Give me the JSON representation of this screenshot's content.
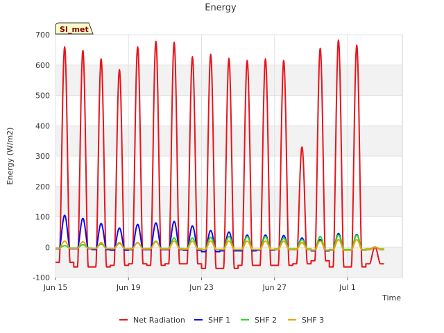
{
  "chart_data": {
    "type": "line",
    "title": "Energy",
    "xlabel": "Time",
    "ylabel": "Energy (W/m2)",
    "site_label": "SI_met",
    "ylim": [
      -100,
      700
    ],
    "yticks": [
      -100,
      0,
      100,
      200,
      300,
      400,
      500,
      600,
      700
    ],
    "xlim": [
      "2024-06-15",
      "2024-07-04"
    ],
    "xticks": [
      {
        "date": "2024-06-15",
        "label": "Jun 15"
      },
      {
        "date": "2024-06-19",
        "label": "Jun 19"
      },
      {
        "date": "2024-06-23",
        "label": "Jun 23"
      },
      {
        "date": "2024-06-27",
        "label": "Jun 27"
      },
      {
        "date": "2024-07-01",
        "label": "Jul 1"
      }
    ],
    "grid": true,
    "background_bands": true,
    "legend_position": "bottom",
    "series": [
      {
        "name": "Net Radiation",
        "color": "#e8141c",
        "daily_min": [
          -50,
          -65,
          -65,
          -60,
          -55,
          -60,
          -55,
          -55,
          -70,
          -70,
          -60,
          -60,
          -60,
          -55,
          -45,
          -65,
          -65,
          -55
        ],
        "daily_max": [
          660,
          648,
          620,
          585,
          660,
          678,
          675,
          627,
          635,
          622,
          615,
          620,
          615,
          330,
          655,
          682,
          665,
          0
        ]
      },
      {
        "name": "SHF 1",
        "color": "#0a0aef",
        "daily_min": [
          -5,
          -5,
          -8,
          -10,
          -8,
          -8,
          -8,
          -10,
          -15,
          -12,
          -12,
          -10,
          -8,
          -8,
          -12,
          -10,
          -10,
          -8
        ],
        "daily_max": [
          105,
          95,
          78,
          63,
          75,
          80,
          85,
          70,
          55,
          50,
          40,
          40,
          38,
          30,
          25,
          45,
          42,
          0
        ]
      },
      {
        "name": "SHF 2",
        "color": "#22dd22",
        "daily_min": [
          -3,
          -3,
          -4,
          -5,
          -5,
          -5,
          -5,
          -6,
          -8,
          -8,
          -8,
          -8,
          -6,
          -6,
          -10,
          -8,
          -8,
          -6
        ],
        "daily_max": [
          5,
          8,
          10,
          12,
          15,
          20,
          30,
          30,
          32,
          35,
          35,
          35,
          30,
          25,
          35,
          40,
          40,
          0
        ]
      },
      {
        "name": "SHF 3",
        "color": "#f0a000",
        "daily_min": [
          -4,
          -4,
          -5,
          -5,
          -6,
          -6,
          -6,
          -7,
          -8,
          -8,
          -8,
          -8,
          -8,
          -8,
          -10,
          -10,
          -10,
          -8
        ],
        "daily_max": [
          20,
          18,
          15,
          15,
          15,
          18,
          20,
          20,
          20,
          20,
          20,
          20,
          20,
          15,
          20,
          25,
          25,
          0
        ]
      }
    ]
  }
}
